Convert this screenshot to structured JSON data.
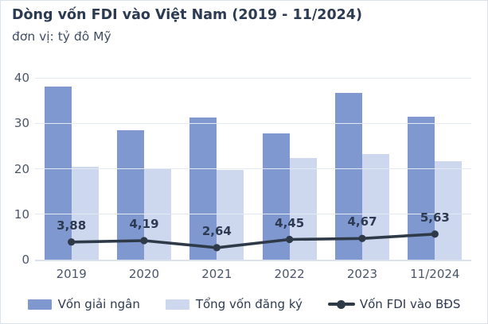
{
  "chart_data": {
    "type": "bar",
    "subtype": "grouped-bars-with-line-overlay",
    "title": "Dòng vốn FDI vào Việt Nam (2019 - 11/2024)",
    "subtitle": "đơn vị: tỷ đô Mỹ",
    "categories": [
      "2019",
      "2020",
      "2021",
      "2022",
      "2023",
      "11/2024"
    ],
    "series": [
      {
        "name": "Vốn giải ngân",
        "type": "bar",
        "color": "#7f99d0",
        "values": [
          38.0,
          28.5,
          31.2,
          27.7,
          36.6,
          31.4
        ]
      },
      {
        "name": "Tổng vốn đăng ký",
        "type": "bar",
        "color": "#cdd8ee",
        "values": [
          20.4,
          20.0,
          19.8,
          22.3,
          23.2,
          21.7
        ]
      },
      {
        "name": "Vốn FDI vào BĐS",
        "type": "line",
        "color": "#2f3a48",
        "values": [
          3.88,
          4.19,
          2.64,
          4.45,
          4.67,
          5.63
        ],
        "labels": [
          "3,88",
          "4,19",
          "2,64",
          "4,45",
          "4,67",
          "5,63"
        ]
      }
    ],
    "xlabel": "",
    "ylabel": "",
    "ylim": [
      0,
      40
    ],
    "y_ticks": [
      0,
      10,
      20,
      30,
      40
    ],
    "grid": "horizontal",
    "legend_position": "bottom"
  },
  "style": {
    "title_color": "#2c3a52",
    "subtitle_color": "#3e4c64",
    "tick_label_color": "#4b5569",
    "point_label_color": "#2d3a52",
    "gridline_color": "#e3e9f2",
    "axis_line_color": "#dbe2ee",
    "card_border_color": "#dae2ee",
    "background_color": "#ffffff"
  }
}
